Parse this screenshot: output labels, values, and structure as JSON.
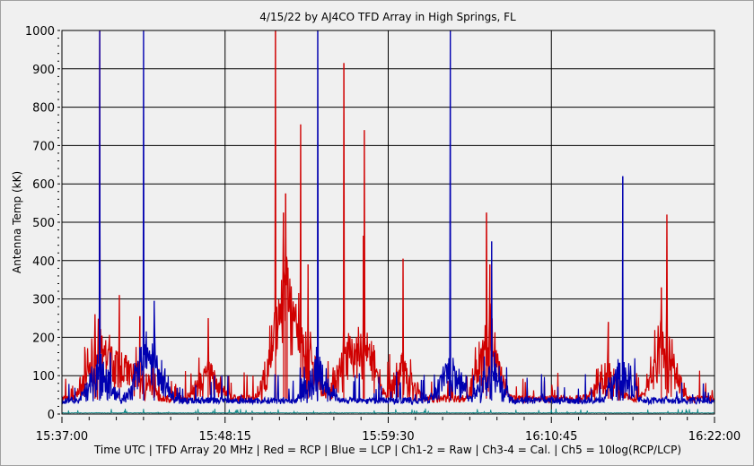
{
  "chart_data": {
    "type": "line",
    "title": "4/15/22  by  AJ4CO TFD Array  in  High Springs, FL",
    "xlabel": "Time UTC | TFD Array 20 MHz | Red = RCP | Blue = LCP | Ch1-2 = Raw | Ch3-4 = Cal. | Ch5 = 10log(RCP/LCP)",
    "ylabel": "Antenna Temp (kK)",
    "xlim": [
      "15:37:00",
      "16:22:00"
    ],
    "ylim": [
      0,
      1000
    ],
    "x_ticks": [
      "15:37:00",
      "15:48:15",
      "15:59:30",
      "16:10:45",
      "16:22:00"
    ],
    "y_ticks": [
      "0",
      "100",
      "200",
      "300",
      "400",
      "500",
      "600",
      "700",
      "800",
      "900",
      "1000"
    ],
    "grid": true,
    "colors": {
      "background": "#f0f0f0",
      "grid": "#000000",
      "rcp": "#d00000",
      "lcp": "#0000b0",
      "ch5": "#008080"
    },
    "series": [
      {
        "name": "Red = RCP",
        "color": "#d00000",
        "baseline": 40,
        "peaks": [
          [
            "15:39:17",
            260
          ],
          [
            "15:39:36",
            1000
          ],
          [
            "15:40:58",
            310
          ],
          [
            "15:42:23",
            255
          ],
          [
            "15:47:05",
            250
          ],
          [
            "15:51:44",
            1000
          ],
          [
            "15:52:17",
            525
          ],
          [
            "15:52:25",
            575
          ],
          [
            "15:52:32",
            400
          ],
          [
            "15:53:28",
            755
          ],
          [
            "15:53:58",
            390
          ],
          [
            "15:56:26",
            915
          ],
          [
            "15:57:47",
            465
          ],
          [
            "15:57:51",
            740
          ],
          [
            "16:00:31",
            405
          ],
          [
            "16:06:16",
            525
          ],
          [
            "16:06:31",
            390
          ],
          [
            "16:14:41",
            240
          ],
          [
            "16:18:20",
            330
          ],
          [
            "16:18:43",
            520
          ]
        ]
      },
      {
        "name": "Blue = LCP",
        "color": "#0000b0",
        "baseline": 35,
        "peaks": [
          [
            "15:39:36",
            1000
          ],
          [
            "15:42:38",
            1000
          ],
          [
            "15:43:22",
            295
          ],
          [
            "15:54:38",
            1000
          ],
          [
            "16:03:47",
            1000
          ],
          [
            "16:06:38",
            450
          ],
          [
            "16:15:41",
            620
          ]
        ]
      },
      {
        "name": "Ch5 = 10log(RCP/LCP)",
        "color": "#008080",
        "baseline": 3,
        "peaks": []
      }
    ]
  }
}
